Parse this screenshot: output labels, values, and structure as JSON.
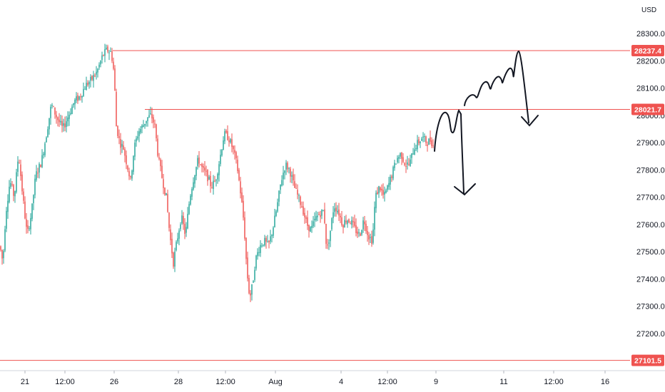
{
  "chart_data": {
    "type": "candlestick",
    "currency": "USD",
    "y_range": [
      27040,
      28390
    ],
    "y_ticks": [
      27200.0,
      27300.0,
      27400.0,
      27500.0,
      27600.0,
      27700.0,
      27800.0,
      27900.0,
      28000.0,
      28100.0,
      28200.0,
      28300.0
    ],
    "y_tick_labels": [
      "27200.0",
      "27300.0",
      "27400.0",
      "27500.0",
      "27600.0",
      "27700.0",
      "27800.0",
      "27900.0",
      "28000.0",
      "28100.0",
      "28200.0",
      "28300.0"
    ],
    "x_tick_labels": [
      "21",
      "12:00",
      "26",
      "28",
      "12:00",
      "Aug",
      "4",
      "12:00",
      "9",
      "11",
      "12:00",
      "16"
    ],
    "price_levels": [
      {
        "value": 28237.4,
        "label": "28237.4"
      },
      {
        "value": 28021.7,
        "label": "28021.7"
      },
      {
        "value": 27101.5,
        "label": "27101.5"
      }
    ],
    "close_path_knots": [
      [
        0,
        27520
      ],
      [
        4,
        27460
      ],
      [
        8,
        27640
      ],
      [
        14,
        27760
      ],
      [
        20,
        27700
      ],
      [
        26,
        27860
      ],
      [
        32,
        27700
      ],
      [
        38,
        27560
      ],
      [
        44,
        27640
      ],
      [
        50,
        27780
      ],
      [
        58,
        27830
      ],
      [
        65,
        27930
      ],
      [
        72,
        28040
      ],
      [
        80,
        27990
      ],
      [
        88,
        27950
      ],
      [
        96,
        28000
      ],
      [
        104,
        28050
      ],
      [
        112,
        28070
      ],
      [
        120,
        28110
      ],
      [
        128,
        28130
      ],
      [
        136,
        28160
      ],
      [
        144,
        28220
      ],
      [
        150,
        28240
      ],
      [
        156,
        28230
      ],
      [
        160,
        28150
      ],
      [
        163,
        27960
      ],
      [
        168,
        27900
      ],
      [
        173,
        27880
      ],
      [
        178,
        27820
      ],
      [
        183,
        27760
      ],
      [
        188,
        27880
      ],
      [
        194,
        27940
      ],
      [
        200,
        27960
      ],
      [
        206,
        27990
      ],
      [
        212,
        28000
      ],
      [
        217,
        27960
      ],
      [
        222,
        27840
      ],
      [
        228,
        27760
      ],
      [
        233,
        27700
      ],
      [
        238,
        27560
      ],
      [
        243,
        27460
      ],
      [
        248,
        27540
      ],
      [
        254,
        27630
      ],
      [
        260,
        27560
      ],
      [
        266,
        27700
      ],
      [
        272,
        27780
      ],
      [
        278,
        27840
      ],
      [
        284,
        27800
      ],
      [
        290,
        27780
      ],
      [
        296,
        27740
      ],
      [
        302,
        27760
      ],
      [
        308,
        27840
      ],
      [
        314,
        27930
      ],
      [
        320,
        27920
      ],
      [
        326,
        27880
      ],
      [
        332,
        27820
      ],
      [
        338,
        27700
      ],
      [
        342,
        27600
      ],
      [
        346,
        27430
      ],
      [
        350,
        27330
      ],
      [
        354,
        27380
      ],
      [
        358,
        27470
      ],
      [
        364,
        27520
      ],
      [
        370,
        27540
      ],
      [
        376,
        27520
      ],
      [
        382,
        27580
      ],
      [
        388,
        27660
      ],
      [
        394,
        27760
      ],
      [
        400,
        27820
      ],
      [
        406,
        27800
      ],
      [
        412,
        27740
      ],
      [
        418,
        27700
      ],
      [
        424,
        27660
      ],
      [
        430,
        27600
      ],
      [
        436,
        27580
      ],
      [
        442,
        27620
      ],
      [
        448,
        27640
      ],
      [
        454,
        27650
      ],
      [
        458,
        27500
      ],
      [
        462,
        27560
      ],
      [
        468,
        27670
      ],
      [
        474,
        27650
      ],
      [
        480,
        27600
      ],
      [
        486,
        27620
      ],
      [
        492,
        27610
      ],
      [
        498,
        27580
      ],
      [
        504,
        27560
      ],
      [
        510,
        27620
      ],
      [
        516,
        27560
      ],
      [
        522,
        27540
      ],
      [
        526,
        27700
      ],
      [
        532,
        27740
      ],
      [
        538,
        27700
      ],
      [
        544,
        27740
      ],
      [
        550,
        27790
      ],
      [
        556,
        27840
      ],
      [
        562,
        27860
      ],
      [
        568,
        27820
      ],
      [
        574,
        27820
      ],
      [
        580,
        27880
      ],
      [
        586,
        27900
      ],
      [
        592,
        27920
      ],
      [
        598,
        27900
      ],
      [
        604,
        27910
      ],
      [
        608,
        27880
      ]
    ]
  }
}
